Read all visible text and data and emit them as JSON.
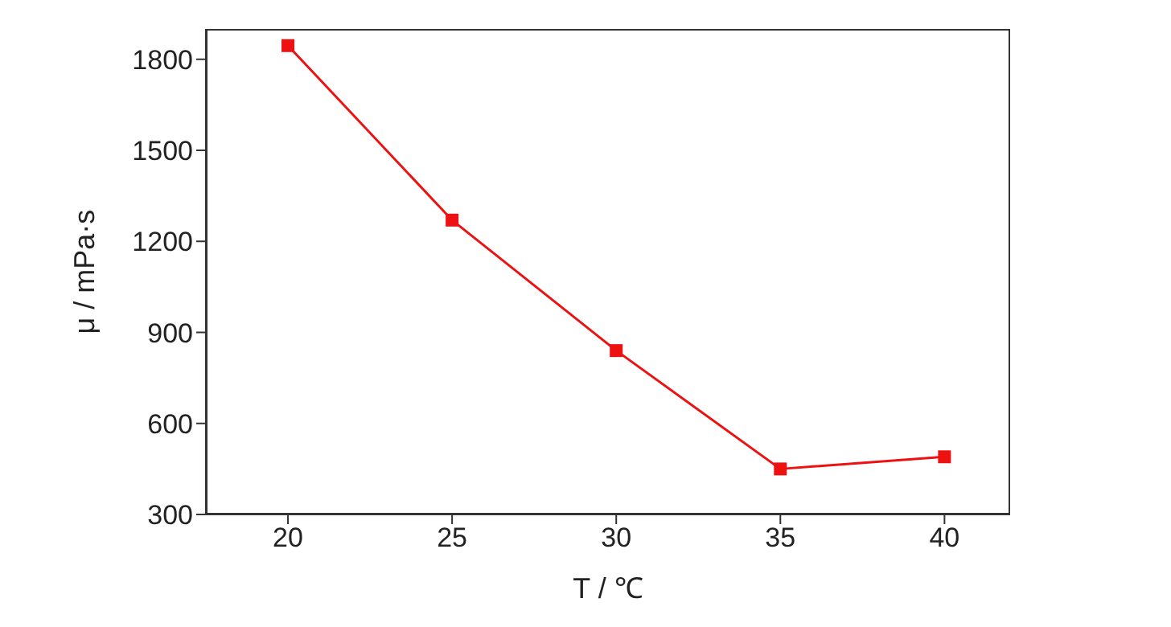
{
  "chart_data": {
    "type": "line",
    "xlabel": "T / ℃",
    "ylabel": "μ / mPa·s",
    "x": [
      20,
      25,
      30,
      35,
      40
    ],
    "series": [
      {
        "color": "#ee1111",
        "values": [
          1845,
          1270,
          840,
          450,
          490
        ]
      }
    ],
    "xlim": [
      17.5,
      42
    ],
    "xticks": [
      20,
      25,
      30,
      35,
      40
    ],
    "ylim": [
      300,
      1900
    ],
    "yticks": [
      300,
      600,
      900,
      1200,
      1500,
      1800
    ],
    "grid": false,
    "legend": false,
    "marker": "square",
    "line_style": "solid"
  }
}
